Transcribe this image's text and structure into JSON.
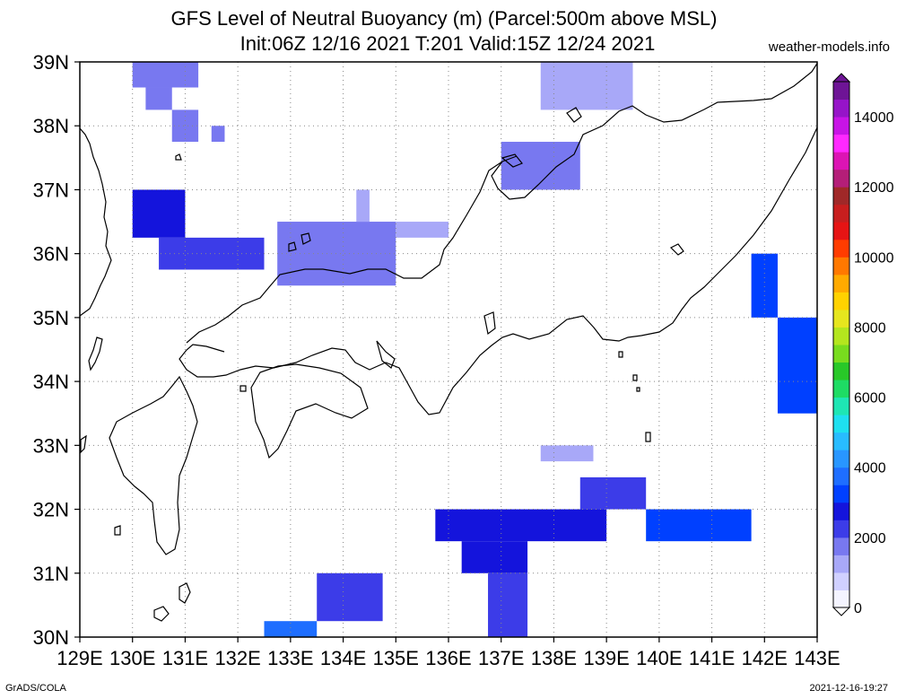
{
  "header": {
    "title_line1": "GFS Level of Neutral Buoyancy (m) (Parcel:500m above MSL)",
    "title_line2": "Init:06Z 12/16 2021 T:201 Valid:15Z 12/24 2021",
    "site": "weather-models.info"
  },
  "footer": {
    "left": "GrADS/COLA",
    "right": "2021-12-16-19:27"
  },
  "map": {
    "lon_min": 129,
    "lon_max": 143,
    "lat_min": 30,
    "lat_max": 39,
    "lon_labels": [
      "129E",
      "130E",
      "131E",
      "132E",
      "133E",
      "134E",
      "135E",
      "136E",
      "137E",
      "138E",
      "139E",
      "140E",
      "141E",
      "142E",
      "143E"
    ],
    "lat_labels": [
      "30N",
      "31N",
      "32N",
      "33N",
      "34N",
      "35N",
      "36N",
      "37N",
      "38N",
      "39N"
    ],
    "grid_lines": true
  },
  "colorbar": {
    "labels": [
      "0",
      "2000",
      "4000",
      "6000",
      "8000",
      "10000",
      "12000",
      "14000"
    ],
    "colors": [
      "#f4f4ff",
      "#d0d0ff",
      "#a8a8f8",
      "#7878f0",
      "#3c3ce8",
      "#1414dc",
      "#0040ff",
      "#1e6eff",
      "#2896ff",
      "#28bcff",
      "#1ee0f0",
      "#1ee6b4",
      "#1edc64",
      "#28c828",
      "#78dc1e",
      "#b4e61e",
      "#e6e61e",
      "#ffd200",
      "#ffaa00",
      "#ff7800",
      "#ff3c00",
      "#e61414",
      "#c81e1e",
      "#a02828",
      "#b41e78",
      "#dc14b4",
      "#ff28ff",
      "#c814e6",
      "#9614c8",
      "#6e1496"
    ]
  },
  "chart_data": {
    "type": "heatmap",
    "title": "GFS Level of Neutral Buoyancy (m) (Parcel:500m above MSL)",
    "subtitle": "Init:06Z 12/16 2021 T:201 Valid:15Z 12/24 2021",
    "units": "m",
    "xlim": [
      129,
      143
    ],
    "ylim": [
      30,
      39
    ],
    "value_range": [
      0,
      15000
    ],
    "cell_size_deg": 0.25,
    "patches": [
      {
        "lon": [
          130.0,
          131.25
        ],
        "lat": [
          38.6,
          39.0
        ],
        "value": 1700
      },
      {
        "lon": [
          130.25,
          130.75
        ],
        "lat": [
          38.25,
          38.6
        ],
        "value": 1800
      },
      {
        "lon": [
          130.75,
          131.25
        ],
        "lat": [
          37.75,
          38.25
        ],
        "value": 1600
      },
      {
        "lon": [
          131.5,
          131.75
        ],
        "lat": [
          37.75,
          38.0
        ],
        "value": 1500
      },
      {
        "lon": [
          130.0,
          131.0
        ],
        "lat": [
          36.25,
          37.0
        ],
        "value": 2600
      },
      {
        "lon": [
          130.5,
          132.5
        ],
        "lat": [
          35.75,
          36.25
        ],
        "value": 2100
      },
      {
        "lon": [
          132.75,
          135.0
        ],
        "lat": [
          35.5,
          36.5
        ],
        "value": 1700
      },
      {
        "lon": [
          135.0,
          136.0
        ],
        "lat": [
          36.25,
          36.5
        ],
        "value": 1300
      },
      {
        "lon": [
          134.25,
          134.5
        ],
        "lat": [
          36.5,
          37.0
        ],
        "value": 1200
      },
      {
        "lon": [
          137.0,
          138.5
        ],
        "lat": [
          37.0,
          37.75
        ],
        "value": 1500
      },
      {
        "lon": [
          137.75,
          139.5
        ],
        "lat": [
          38.25,
          39.0
        ],
        "value": 1400
      },
      {
        "lon": [
          141.75,
          142.25
        ],
        "lat": [
          35.0,
          36.0
        ],
        "value": 3000
      },
      {
        "lon": [
          142.25,
          143.0
        ],
        "lat": [
          33.5,
          35.0
        ],
        "value": 3200
      },
      {
        "lon": [
          135.75,
          139.0
        ],
        "lat": [
          31.5,
          32.0
        ],
        "value": 2700
      },
      {
        "lon": [
          136.25,
          137.5
        ],
        "lat": [
          31.0,
          31.5
        ],
        "value": 2500
      },
      {
        "lon": [
          137.75,
          138.75
        ],
        "lat": [
          32.75,
          33.0
        ],
        "value": 1400
      },
      {
        "lon": [
          138.5,
          139.75
        ],
        "lat": [
          32.0,
          32.5
        ],
        "value": 2300
      },
      {
        "lon": [
          139.75,
          141.75
        ],
        "lat": [
          31.5,
          32.0
        ],
        "value": 3300
      },
      {
        "lon": [
          136.75,
          137.5
        ],
        "lat": [
          30.0,
          31.0
        ],
        "value": 2300
      },
      {
        "lon": [
          133.5,
          134.75
        ],
        "lat": [
          30.25,
          31.0
        ],
        "value": 2400
      },
      {
        "lon": [
          132.5,
          133.5
        ],
        "lat": [
          30.0,
          30.25
        ],
        "value": 3500
      }
    ]
  }
}
